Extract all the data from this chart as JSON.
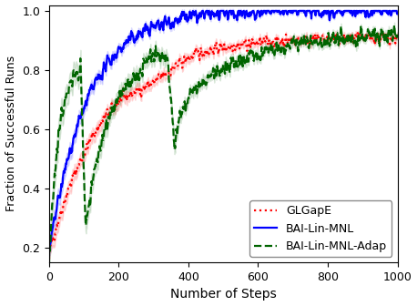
{
  "title": "",
  "xlabel": "Number of Steps",
  "ylabel": "Fraction of Successful Runs",
  "xlim": [
    0,
    1000
  ],
  "ylim": [
    0.15,
    1.02
  ],
  "yticks": [
    0.2,
    0.4,
    0.6,
    0.8,
    1.0
  ],
  "xticks": [
    0,
    200,
    400,
    600,
    800,
    1000
  ],
  "figsize": [
    4.58,
    3.36
  ],
  "dpi": 100,
  "colors": {
    "glgape": "#ff0000",
    "bai_lin_mnl": "#0000ff",
    "bai_lin_mnl_adap": "#006400"
  },
  "legend": {
    "labels": [
      "GLGapE",
      "BAI-Lin-MNL",
      "BAI-Lin-MNL-Adap"
    ],
    "loc": "lower right",
    "fontsize": 9
  },
  "seed": 42
}
